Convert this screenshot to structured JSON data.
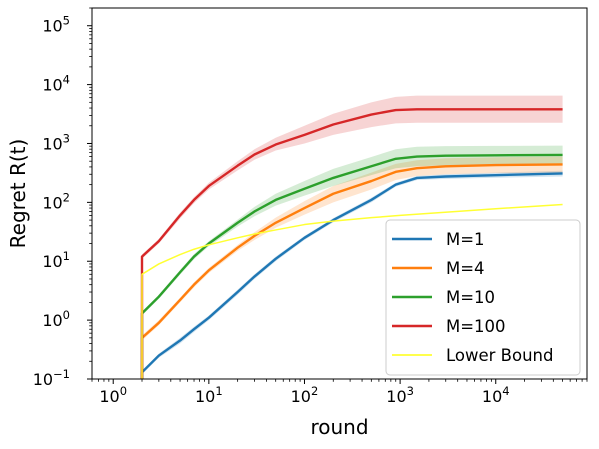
{
  "chart_data": {
    "type": "line",
    "title": "",
    "xlabel": "round",
    "ylabel": "Regret R(t)",
    "xscale": "log",
    "yscale": "log",
    "xlim": [
      0.6,
      90000
    ],
    "ylim": [
      0.1,
      200000
    ],
    "x_ticks": [
      {
        "value": 1,
        "base": "10",
        "exp": "0"
      },
      {
        "value": 10,
        "base": "10",
        "exp": "1"
      },
      {
        "value": 100,
        "base": "10",
        "exp": "2"
      },
      {
        "value": 1000,
        "base": "10",
        "exp": "3"
      },
      {
        "value": 10000,
        "base": "10",
        "exp": "4"
      }
    ],
    "y_ticks": [
      {
        "value": 0.1,
        "base": "10",
        "exp": "−1"
      },
      {
        "value": 1,
        "base": "10",
        "exp": "0"
      },
      {
        "value": 10,
        "base": "10",
        "exp": "1"
      },
      {
        "value": 100,
        "base": "10",
        "exp": "2"
      },
      {
        "value": 1000,
        "base": "10",
        "exp": "3"
      },
      {
        "value": 10000,
        "base": "10",
        "exp": "4"
      },
      {
        "value": 100000,
        "base": "10",
        "exp": "5"
      }
    ],
    "grid": false,
    "legend_position": "lower-right",
    "series": [
      {
        "name": "M=1",
        "color": "#1f77b4",
        "x": [
          2,
          3,
          5,
          7,
          10,
          20,
          30,
          50,
          100,
          200,
          500,
          900,
          1500,
          3000,
          10000,
          50000
        ],
        "y": [
          0.13,
          0.25,
          0.45,
          0.7,
          1.1,
          3,
          5.5,
          11,
          25,
          50,
          110,
          200,
          260,
          275,
          290,
          310
        ],
        "y_low": [
          0.12,
          0.23,
          0.4,
          0.63,
          1.0,
          2.7,
          5.0,
          10,
          23,
          46,
          100,
          185,
          240,
          250,
          262,
          275
        ],
        "y_high": [
          0.14,
          0.27,
          0.5,
          0.77,
          1.2,
          3.3,
          6.0,
          12,
          27,
          54,
          120,
          215,
          280,
          300,
          320,
          345
        ]
      },
      {
        "name": "M=4",
        "color": "#ff7f0e",
        "x": [
          2,
          3,
          5,
          7,
          10,
          20,
          30,
          50,
          100,
          200,
          500,
          900,
          1500,
          3000,
          10000,
          50000
        ],
        "y": [
          0.5,
          0.9,
          2.2,
          4,
          7,
          17,
          27,
          45,
          80,
          140,
          230,
          330,
          380,
          410,
          430,
          440
        ],
        "y_low": [
          0.45,
          0.82,
          2.0,
          3.6,
          6.3,
          15,
          23,
          37,
          62,
          100,
          165,
          240,
          280,
          300,
          315,
          320
        ],
        "y_high": [
          0.55,
          1.0,
          2.4,
          4.4,
          7.7,
          19,
          31,
          55,
          105,
          190,
          320,
          450,
          520,
          560,
          585,
          600
        ]
      },
      {
        "name": "M=10",
        "color": "#2ca02c",
        "x": [
          2,
          3,
          5,
          7,
          10,
          20,
          30,
          50,
          100,
          200,
          500,
          900,
          1500,
          3000,
          10000,
          50000
        ],
        "y": [
          1.3,
          2.5,
          6.5,
          12,
          20,
          45,
          70,
          110,
          170,
          260,
          410,
          550,
          600,
          620,
          630,
          640
        ],
        "y_low": [
          1.2,
          2.3,
          5.9,
          10.8,
          18,
          39,
          58,
          88,
          130,
          190,
          290,
          380,
          410,
          425,
          430,
          435
        ],
        "y_high": [
          1.4,
          2.7,
          7.1,
          13.2,
          22,
          51,
          84,
          140,
          230,
          370,
          590,
          800,
          880,
          900,
          910,
          920
        ]
      },
      {
        "name": "M=100",
        "color": "#d62728",
        "x": [
          2,
          3,
          5,
          7,
          10,
          20,
          30,
          50,
          100,
          200,
          500,
          900,
          1500,
          3000,
          10000,
          50000
        ],
        "y": [
          12,
          22,
          60,
          110,
          190,
          420,
          650,
          960,
          1400,
          2100,
          3100,
          3700,
          3800,
          3800,
          3800,
          3800
        ],
        "y_low": [
          11,
          20,
          53,
          97,
          165,
          350,
          530,
          760,
          1000,
          1400,
          1900,
          2200,
          2250,
          2250,
          2250,
          2250
        ],
        "y_high": [
          13,
          24,
          67,
          123,
          215,
          500,
          800,
          1250,
          2000,
          3200,
          5000,
          6200,
          6500,
          6500,
          6500,
          6500
        ]
      },
      {
        "name": "Lower Bound",
        "color": "#ffff33",
        "x": [
          2,
          3,
          5,
          7,
          10,
          20,
          30,
          50,
          100,
          200,
          500,
          1000,
          2000,
          5000,
          10000,
          50000
        ],
        "y": [
          6,
          9,
          13,
          16,
          19,
          25,
          29,
          34,
          42,
          48,
          55,
          60,
          65,
          72,
          78,
          92
        ]
      }
    ]
  }
}
